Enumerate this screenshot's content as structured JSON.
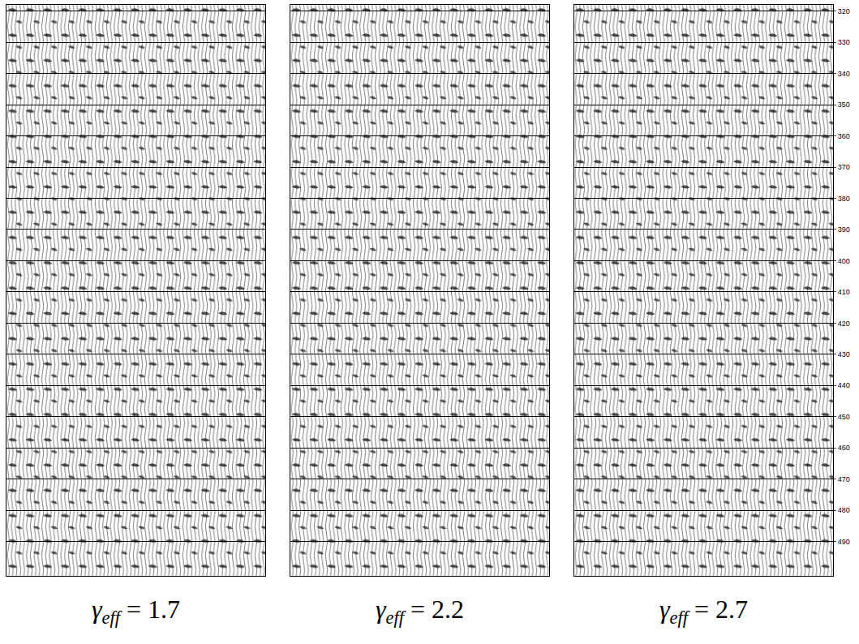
{
  "chart_data": {
    "type": "wiggle",
    "panels": [
      {
        "symbol": "γ",
        "subscript": "eff",
        "value": 1.7
      },
      {
        "symbol": "γ",
        "subscript": "eff",
        "value": 2.2
      },
      {
        "symbol": "γ",
        "subscript": "eff",
        "value": 2.7
      }
    ],
    "ylim": [
      318,
      501
    ],
    "yticks": [
      320,
      330,
      340,
      350,
      360,
      370,
      380,
      390,
      400,
      410,
      420,
      430,
      440,
      450,
      460,
      470,
      480,
      490
    ],
    "grid": true,
    "tick_labels": "y"
  }
}
